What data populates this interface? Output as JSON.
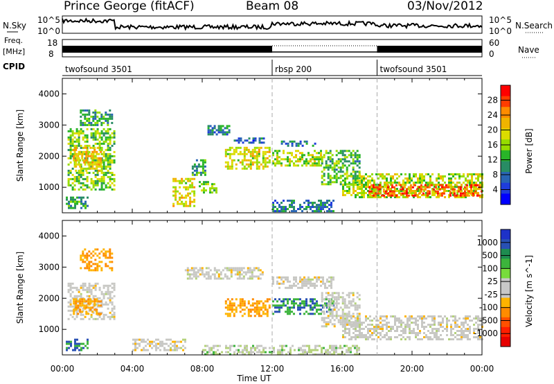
{
  "header": {
    "station": "Prince George (fitACF)",
    "beam": "Beam 08",
    "date": "03/Nov/2012"
  },
  "noise_panel": {
    "left_label": "N.Sky",
    "right_label": "N.Search",
    "left_ticks": [
      "10^5",
      "10^0"
    ],
    "right_ticks": [
      "10^5",
      "10^0"
    ]
  },
  "freq_panel": {
    "left_label_1": "Freq.",
    "left_label_2": "[MHz]",
    "right_label": "Nave",
    "left_ticks": [
      "18",
      "8"
    ],
    "right_ticks": [
      "60",
      "0"
    ]
  },
  "cpid": {
    "label": "CPID",
    "segments": [
      {
        "name": "twofsound 3501",
        "start_hour": 0
      },
      {
        "name": "rbsp 200",
        "start_hour": 12
      },
      {
        "name": "twofsound 3501",
        "start_hour": 18
      }
    ]
  },
  "power_colorbar": {
    "title": "Power [dB]",
    "ticks": [
      "28",
      "24",
      "20",
      "16",
      "12",
      "8",
      "4"
    ],
    "colors": [
      "#ff0000",
      "#ff3c00",
      "#ff8c00",
      "#f0b400",
      "#dcdc00",
      "#96dc00",
      "#28b428",
      "#288c64",
      "#2864b4",
      "#1e3cdc",
      "#0000ff"
    ]
  },
  "velocity_colorbar": {
    "title": "Velocity [m s^-1]",
    "ticks": [
      "1000",
      "500",
      "100",
      "25",
      "-25",
      "-100",
      "-500",
      "-1000"
    ],
    "colors": [
      "#1e32c8",
      "#2850b4",
      "#1e8c50",
      "#3cb43c",
      "#78dc3c",
      "#c8c8c8",
      "#c8c8c8",
      "#ffb400",
      "#ff8c00",
      "#ff5000",
      "#ff1e00",
      "#e60000"
    ]
  },
  "chart_data": {
    "type": "heatmap",
    "xlabel": "Time UT",
    "x_ticks": [
      "00:00",
      "04:00",
      "08:00",
      "12:00",
      "16:00",
      "20:00",
      "00:00"
    ],
    "xlim_hours": [
      0,
      24
    ],
    "ylabel": "Slant Range [km]",
    "ylim_km": [
      180,
      4500
    ],
    "y_ticks": [
      1000,
      2000,
      3000,
      4000
    ],
    "separators_hours": [
      12,
      18
    ],
    "panels": [
      {
        "name": "power",
        "unit": "dB",
        "regions": [
          {
            "t0": 0.3,
            "t1": 3.0,
            "r0": 900,
            "r1": 2900,
            "v": 14
          },
          {
            "t0": 0.6,
            "t1": 2.2,
            "r0": 1500,
            "r1": 2300,
            "v": 20
          },
          {
            "t0": 1.0,
            "t1": 2.8,
            "r0": 3000,
            "r1": 3500,
            "v": 10
          },
          {
            "t0": 0.2,
            "t1": 1.5,
            "r0": 300,
            "r1": 700,
            "v": 10
          },
          {
            "t0": 6.3,
            "t1": 7.6,
            "r0": 400,
            "r1": 1300,
            "v": 18
          },
          {
            "t0": 7.8,
            "t1": 8.8,
            "r0": 800,
            "r1": 1200,
            "v": 14
          },
          {
            "t0": 7.4,
            "t1": 8.2,
            "r0": 1400,
            "r1": 1900,
            "v": 10
          },
          {
            "t0": 8.3,
            "t1": 9.6,
            "r0": 2700,
            "r1": 3000,
            "v": 8
          },
          {
            "t0": 9.3,
            "t1": 11.9,
            "r0": 1600,
            "r1": 2300,
            "v": 18
          },
          {
            "t0": 9.8,
            "t1": 11.5,
            "r0": 2400,
            "r1": 2600,
            "v": 6
          },
          {
            "t0": 12.0,
            "t1": 14.8,
            "r0": 1700,
            "r1": 2200,
            "v": 16
          },
          {
            "t0": 12.5,
            "t1": 14.5,
            "r0": 2300,
            "r1": 2500,
            "v": 8
          },
          {
            "t0": 14.8,
            "t1": 17.0,
            "r0": 1100,
            "r1": 2200,
            "v": 12
          },
          {
            "t0": 12.0,
            "t1": 15.5,
            "r0": 200,
            "r1": 600,
            "v": 8
          },
          {
            "t0": 16.0,
            "t1": 24.0,
            "r0": 650,
            "r1": 1450,
            "v": 16
          },
          {
            "t0": 17.5,
            "t1": 24.0,
            "r0": 700,
            "r1": 1100,
            "v": 26
          }
        ]
      },
      {
        "name": "velocity",
        "unit": "m/s",
        "regions": [
          {
            "t0": 0.3,
            "t1": 3.0,
            "r0": 1300,
            "r1": 2500,
            "v": 0
          },
          {
            "t0": 0.6,
            "t1": 2.2,
            "r0": 1500,
            "r1": 2000,
            "v": -100
          },
          {
            "t0": 1.0,
            "t1": 2.8,
            "r0": 2900,
            "r1": 3600,
            "v": -100
          },
          {
            "t0": 0.2,
            "t1": 1.5,
            "r0": 300,
            "r1": 700,
            "v": 100
          },
          {
            "t0": 4.0,
            "t1": 7.0,
            "r0": 300,
            "r1": 700,
            "v": 0
          },
          {
            "t0": 7.0,
            "t1": 11.5,
            "r0": 2600,
            "r1": 3000,
            "v": 0
          },
          {
            "t0": 9.3,
            "t1": 11.8,
            "r0": 1400,
            "r1": 2000,
            "v": -100
          },
          {
            "t0": 12.0,
            "t1": 15.5,
            "r0": 1500,
            "r1": 2000,
            "v": 100
          },
          {
            "t0": 12.0,
            "t1": 15.5,
            "r0": 2300,
            "r1": 2700,
            "v": 0
          },
          {
            "t0": 14.8,
            "t1": 17.0,
            "r0": 1100,
            "r1": 2200,
            "v": 0
          },
          {
            "t0": 8.0,
            "t1": 17.0,
            "r0": 200,
            "r1": 500,
            "v": 25
          },
          {
            "t0": 16.0,
            "t1": 24.0,
            "r0": 700,
            "r1": 1450,
            "v": 0
          }
        ]
      }
    ]
  }
}
